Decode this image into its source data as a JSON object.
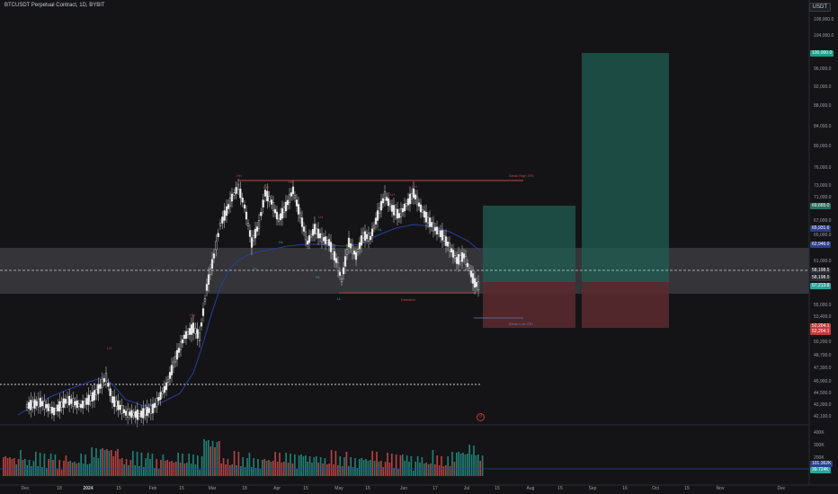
{
  "header": {
    "title": "BTCUSDT Perpetual Contract, 1D, BYBIT",
    "currency": "USDT"
  },
  "price_ticks": [
    "108,000.0",
    "104,000.0",
    "96,000.0",
    "92,000.0",
    "88,000.0",
    "84,000.0",
    "80,000.0",
    "76,000.0",
    "73,000.0",
    "71,000.0",
    "67,000.0",
    "65,000.0",
    "61,000.0",
    "55,000.0",
    "53,400.0",
    "50,200.0",
    "48,700.0",
    "47,300.0",
    "45,900.0",
    "44,500.0",
    "43,300.0",
    "42,100.0"
  ],
  "price_tags": [
    {
      "text": "100,000.0",
      "color": "#1d9e88"
    },
    {
      "text": "69,665.0",
      "color": "#2a6e5d"
    },
    {
      "text": "65,931.6",
      "color": "#2b3f8c"
    },
    {
      "text": "62,946.0",
      "color": "#2b3f8c"
    },
    {
      "text": "58,198.5",
      "color": "#2a2d36"
    },
    {
      "text": "58,198.5",
      "color": "#2a2d36"
    },
    {
      "text": "57,213.8",
      "color": "#26a69a"
    },
    {
      "text": "52,204.1",
      "color": "#c23b3b"
    },
    {
      "text": "52,204.1",
      "color": "#c23b3b"
    }
  ],
  "volume_ticks": [
    "400K",
    "300K",
    "200K"
  ],
  "volume_tags": [
    {
      "text": "101.362K",
      "color": "#2b3f8c"
    },
    {
      "text": "39.724K",
      "color": "#26a69a"
    }
  ],
  "x_ticks": [
    "Dec",
    "18",
    "2024",
    "15",
    "Feb",
    "15",
    "Mar",
    "18",
    "Apr",
    "15",
    "May",
    "15",
    "Jun",
    "17",
    "Jul",
    "15",
    "Aug",
    "15",
    "Sep",
    "16",
    "Oct",
    "15",
    "Nov",
    "Dec"
  ],
  "annotations": [
    {
      "text": "Weak High 4Th",
      "color": "#c94444"
    },
    {
      "text": "Weak Low 4Th",
      "color": "#6a79b0"
    },
    {
      "text": "Direction",
      "color": "#c94444"
    },
    {
      "text": "HH",
      "color": "#c94444"
    },
    {
      "text": "HH",
      "color": "#c94444"
    },
    {
      "text": "HH",
      "color": "#c94444"
    },
    {
      "text": "LH",
      "color": "#c94444"
    },
    {
      "text": "LH",
      "color": "#c94444"
    },
    {
      "text": "LH",
      "color": "#c94444"
    },
    {
      "text": "HH",
      "color": "#c94444"
    },
    {
      "text": "HL",
      "color": "#26a69a"
    },
    {
      "text": "HL",
      "color": "#26a69a"
    },
    {
      "text": "LL",
      "color": "#26a69a"
    },
    {
      "text": "LL",
      "color": "#26a69a"
    },
    {
      "text": "HL",
      "color": "#26a69a"
    },
    {
      "text": "HH",
      "color": "#c94444"
    }
  ],
  "colors": {
    "up": "#26a69a",
    "down": "#ef5350",
    "candle": "#e8e8e8",
    "ma": "#2a3f9c",
    "tp_zone": "#1f5d53",
    "sl_zone": "#5c2a2f"
  }
}
